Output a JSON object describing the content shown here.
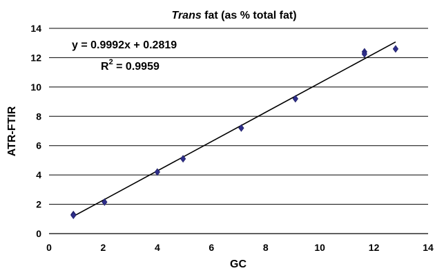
{
  "chart_data": {
    "type": "scatter",
    "title_italic": "Trans",
    "title_rest": " fat (as % total fat)",
    "xlabel": "GC",
    "ylabel": "ATR-FTIR",
    "xlim": [
      0,
      14
    ],
    "ylim": [
      0,
      14
    ],
    "xticks": [
      "0",
      "2",
      "4",
      "6",
      "8",
      "10",
      "12",
      "14"
    ],
    "yticks": [
      "0",
      "2",
      "4",
      "6",
      "8",
      "10",
      "12",
      "14"
    ],
    "grid": "horizontal",
    "marker_color": "#2e2e8a",
    "line_color": "#000000",
    "points": [
      {
        "x": 0.9,
        "y": 1.3
      },
      {
        "x": 0.9,
        "y": 1.25
      },
      {
        "x": 2.05,
        "y": 2.15
      },
      {
        "x": 4.0,
        "y": 4.2
      },
      {
        "x": 4.95,
        "y": 5.1
      },
      {
        "x": 7.1,
        "y": 7.2
      },
      {
        "x": 9.1,
        "y": 9.2
      },
      {
        "x": 11.65,
        "y": 12.4
      },
      {
        "x": 11.65,
        "y": 12.25
      },
      {
        "x": 12.8,
        "y": 12.6
      }
    ],
    "trendline": {
      "slope": 0.9992,
      "intercept": 0.2819,
      "x_start": 0.9,
      "x_end": 12.8
    },
    "equation": "y = 0.9992x + 0.2819",
    "r2_prefix": "R",
    "r2_sup": "2",
    "r2_value": " = 0.9959"
  }
}
